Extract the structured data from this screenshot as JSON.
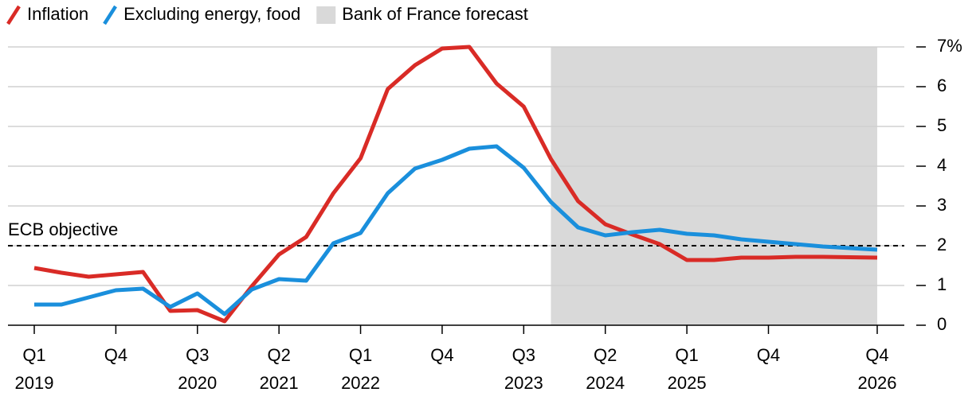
{
  "chart_data": {
    "type": "line",
    "categories": [
      "Q1",
      null,
      null,
      "Q4",
      null,
      null,
      "Q3",
      null,
      null,
      "Q2",
      null,
      null,
      "Q1",
      null,
      null,
      "Q4",
      null,
      null,
      "Q3",
      null,
      null,
      "Q2",
      null,
      null,
      "Q1",
      null,
      null,
      "Q4",
      null,
      null,
      null,
      "Q4"
    ],
    "years": [
      "2019",
      null,
      null,
      null,
      null,
      null,
      "2020",
      null,
      null,
      "2021",
      null,
      null,
      "2022",
      null,
      null,
      null,
      null,
      null,
      "2023",
      null,
      null,
      "2024",
      null,
      null,
      "2025",
      null,
      null,
      null,
      null,
      null,
      null,
      "2026"
    ],
    "series": [
      {
        "name": "Inflation",
        "color": "#d92b26",
        "values": [
          1.44,
          1.32,
          1.22,
          1.28,
          1.34,
          0.36,
          0.38,
          0.1,
          0.98,
          1.78,
          2.22,
          3.32,
          4.2,
          5.94,
          6.54,
          6.96,
          7.0,
          6.08,
          5.5,
          4.18,
          3.12,
          2.54,
          2.28,
          2.04,
          1.64,
          1.64,
          1.7,
          1.7,
          1.72,
          1.72,
          1.71,
          1.7
        ]
      },
      {
        "name": "Excluding energy, food",
        "color": "#1a8fdc",
        "values": [
          0.52,
          0.52,
          0.7,
          0.88,
          0.92,
          0.46,
          0.8,
          0.28,
          0.9,
          1.16,
          1.12,
          2.06,
          2.32,
          3.32,
          3.94,
          4.16,
          4.44,
          4.5,
          3.96,
          3.1,
          2.46,
          2.26,
          2.34,
          2.4,
          2.3,
          2.26,
          2.16,
          2.1,
          2.04,
          1.98,
          1.94,
          1.9
        ]
      }
    ],
    "forecast": {
      "label": "Bank of France forecast",
      "color": "#d9d9d9",
      "range": [
        19,
        31
      ]
    },
    "reference": {
      "label": "ECB objective",
      "value": 2
    },
    "ylim": [
      0,
      7
    ],
    "yticks": [
      0,
      1,
      2,
      3,
      4,
      5,
      6,
      {
        "value": 7,
        "label": "7%"
      }
    ],
    "grid": true
  }
}
